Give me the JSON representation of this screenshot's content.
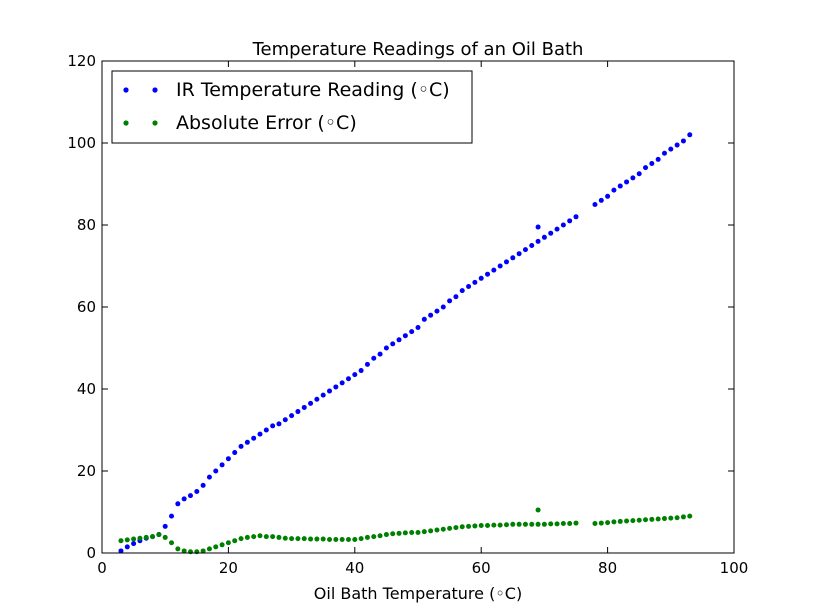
{
  "chart_data": {
    "type": "scatter",
    "title": "Temperature Readings of an Oil Bath",
    "xlabel": "Oil Bath Temperature (◦C)",
    "ylabel": "",
    "xlim": [
      0,
      100
    ],
    "ylim": [
      0,
      120
    ],
    "xticks": [
      "0",
      "20",
      "40",
      "60",
      "80",
      "100"
    ],
    "yticks": [
      "0",
      "20",
      "40",
      "60",
      "80",
      "100",
      "120"
    ],
    "legend_position": "top-left",
    "grid": false,
    "series": [
      {
        "name": "IR Temperature Reading (◦C)",
        "color": "#0000ff",
        "points": [
          [
            3,
            0.5
          ],
          [
            4,
            1.5
          ],
          [
            5,
            2.3
          ],
          [
            6,
            3.0
          ],
          [
            7,
            3.6
          ],
          [
            8,
            4.0
          ],
          [
            9,
            4.5
          ],
          [
            10,
            6.5
          ],
          [
            11,
            9.0
          ],
          [
            12,
            12.0
          ],
          [
            13,
            13.2
          ],
          [
            14,
            14.0
          ],
          [
            15,
            15.0
          ],
          [
            16,
            16.5
          ],
          [
            17,
            18.5
          ],
          [
            18,
            20.0
          ],
          [
            19,
            21.5
          ],
          [
            20,
            23.0
          ],
          [
            21,
            24.5
          ],
          [
            22,
            26.0
          ],
          [
            23,
            27.0
          ],
          [
            24,
            28.0
          ],
          [
            25,
            29.0
          ],
          [
            26,
            30.0
          ],
          [
            27,
            31.0
          ],
          [
            28,
            31.5
          ],
          [
            29,
            32.5
          ],
          [
            30,
            33.5
          ],
          [
            31,
            34.5
          ],
          [
            32,
            35.5
          ],
          [
            33,
            36.5
          ],
          [
            34,
            37.5
          ],
          [
            35,
            38.5
          ],
          [
            36,
            39.5
          ],
          [
            37,
            40.5
          ],
          [
            38,
            41.5
          ],
          [
            39,
            42.5
          ],
          [
            40,
            43.5
          ],
          [
            41,
            44.5
          ],
          [
            42,
            46.0
          ],
          [
            43,
            47.5
          ],
          [
            44,
            48.5
          ],
          [
            45,
            50.0
          ],
          [
            46,
            51.0
          ],
          [
            47,
            52.0
          ],
          [
            48,
            53.0
          ],
          [
            49,
            54.0
          ],
          [
            50,
            55.0
          ],
          [
            51,
            57.0
          ],
          [
            52,
            58.0
          ],
          [
            53,
            59.0
          ],
          [
            54,
            60.0
          ],
          [
            55,
            61.5
          ],
          [
            56,
            62.5
          ],
          [
            57,
            64.0
          ],
          [
            58,
            65.0
          ],
          [
            59,
            66.0
          ],
          [
            60,
            67.0
          ],
          [
            61,
            68.0
          ],
          [
            62,
            69.0
          ],
          [
            63,
            70.0
          ],
          [
            64,
            71.0
          ],
          [
            65,
            72.0
          ],
          [
            66,
            73.0
          ],
          [
            67,
            74.0
          ],
          [
            68,
            75.0
          ],
          [
            69,
            76.0
          ],
          [
            70,
            77.0
          ],
          [
            71,
            78.0
          ],
          [
            72,
            79.0
          ],
          [
            73,
            80.0
          ],
          [
            74,
            81.0
          ],
          [
            75,
            82.0
          ],
          [
            69,
            79.5
          ],
          [
            78,
            85.0
          ],
          [
            79,
            86.0
          ],
          [
            80,
            87.0
          ],
          [
            81,
            88.5
          ],
          [
            82,
            89.5
          ],
          [
            83,
            90.5
          ],
          [
            84,
            91.5
          ],
          [
            85,
            92.5
          ],
          [
            86,
            94.0
          ],
          [
            87,
            95.0
          ],
          [
            88,
            96.0
          ],
          [
            89,
            97.5
          ],
          [
            90,
            98.5
          ],
          [
            91,
            99.5
          ],
          [
            92,
            100.5
          ],
          [
            93,
            102.0
          ]
        ]
      },
      {
        "name": "Absolute Error (◦C)",
        "color": "#008000",
        "points": [
          [
            3,
            3.0
          ],
          [
            4,
            3.2
          ],
          [
            5,
            3.4
          ],
          [
            6,
            3.6
          ],
          [
            7,
            3.8
          ],
          [
            8,
            4.0
          ],
          [
            9,
            4.5
          ],
          [
            10,
            3.8
          ],
          [
            11,
            2.5
          ],
          [
            12,
            1.0
          ],
          [
            13,
            0.5
          ],
          [
            14,
            0.3
          ],
          [
            15,
            0.3
          ],
          [
            16,
            0.5
          ],
          [
            17,
            1.0
          ],
          [
            18,
            1.5
          ],
          [
            19,
            2.0
          ],
          [
            20,
            2.5
          ],
          [
            21,
            3.0
          ],
          [
            22,
            3.5
          ],
          [
            23,
            3.8
          ],
          [
            24,
            4.0
          ],
          [
            25,
            4.2
          ],
          [
            26,
            4.0
          ],
          [
            27,
            4.0
          ],
          [
            28,
            3.8
          ],
          [
            29,
            3.6
          ],
          [
            30,
            3.5
          ],
          [
            31,
            3.5
          ],
          [
            32,
            3.5
          ],
          [
            33,
            3.4
          ],
          [
            34,
            3.4
          ],
          [
            35,
            3.4
          ],
          [
            36,
            3.3
          ],
          [
            37,
            3.3
          ],
          [
            38,
            3.3
          ],
          [
            39,
            3.3
          ],
          [
            40,
            3.3
          ],
          [
            41,
            3.5
          ],
          [
            42,
            3.8
          ],
          [
            43,
            4.0
          ],
          [
            44,
            4.2
          ],
          [
            45,
            4.5
          ],
          [
            46,
            4.7
          ],
          [
            47,
            4.8
          ],
          [
            48,
            4.9
          ],
          [
            49,
            5.0
          ],
          [
            50,
            5.0
          ],
          [
            51,
            5.2
          ],
          [
            52,
            5.4
          ],
          [
            53,
            5.6
          ],
          [
            54,
            5.8
          ],
          [
            55,
            6.0
          ],
          [
            56,
            6.2
          ],
          [
            57,
            6.4
          ],
          [
            58,
            6.5
          ],
          [
            59,
            6.6
          ],
          [
            60,
            6.7
          ],
          [
            61,
            6.7
          ],
          [
            62,
            6.8
          ],
          [
            63,
            6.8
          ],
          [
            64,
            6.9
          ],
          [
            65,
            7.0
          ],
          [
            66,
            7.0
          ],
          [
            67,
            7.0
          ],
          [
            68,
            7.0
          ],
          [
            69,
            7.0
          ],
          [
            70,
            7.0
          ],
          [
            71,
            7.1
          ],
          [
            72,
            7.1
          ],
          [
            73,
            7.2
          ],
          [
            74,
            7.2
          ],
          [
            75,
            7.3
          ],
          [
            69,
            10.5
          ],
          [
            78,
            7.2
          ],
          [
            79,
            7.3
          ],
          [
            80,
            7.4
          ],
          [
            81,
            7.6
          ],
          [
            82,
            7.7
          ],
          [
            83,
            7.8
          ],
          [
            84,
            7.9
          ],
          [
            85,
            8.0
          ],
          [
            86,
            8.1
          ],
          [
            87,
            8.2
          ],
          [
            88,
            8.3
          ],
          [
            89,
            8.4
          ],
          [
            90,
            8.5
          ],
          [
            91,
            8.6
          ],
          [
            92,
            8.8
          ],
          [
            93,
            9.0
          ]
        ]
      }
    ]
  }
}
